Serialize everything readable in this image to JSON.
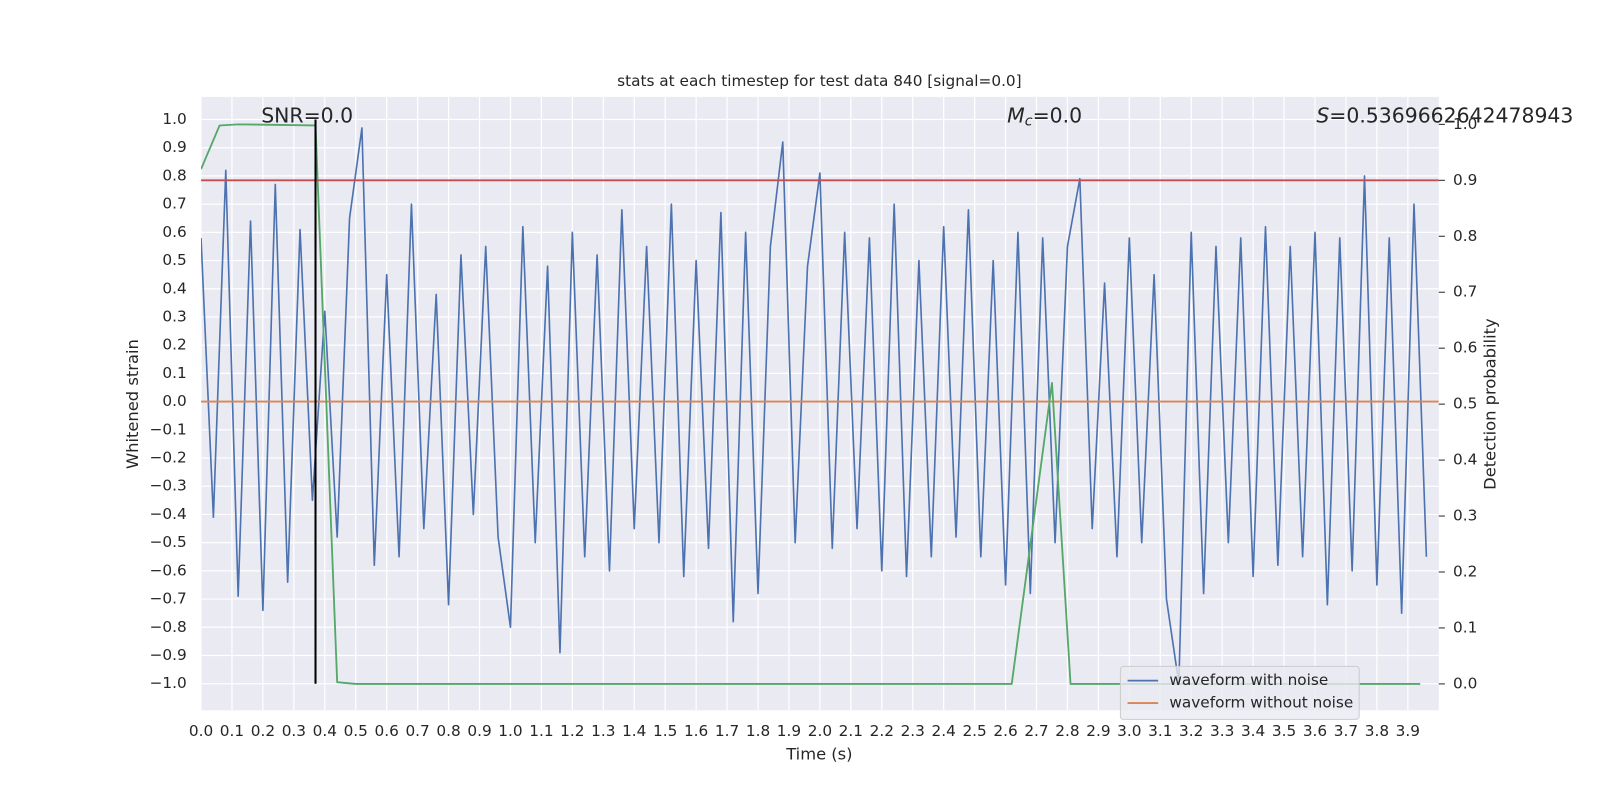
{
  "chart_data": {
    "type": "line",
    "title": "stats at each timestep for test data 840 [signal=0.0]",
    "xlabel": "Time (s)",
    "ylabel": "Whitened strain",
    "y2label": "Detection probability",
    "xlim": [
      0,
      4.0
    ],
    "ylim": [
      -1.094,
      1.08
    ],
    "y2lim": [
      -0.047,
      1.049
    ],
    "grid": true,
    "legend": "lower right",
    "xticks": [
      {
        "value": 0,
        "label": "0.0"
      },
      0.1,
      0.2,
      0.3,
      0.4,
      0.5,
      0.6,
      0.7,
      0.8,
      0.9,
      {
        "value": 1,
        "label": "1.0"
      },
      1.1,
      1.2,
      1.3,
      1.4,
      1.5,
      1.6,
      1.7,
      1.8,
      1.9,
      {
        "value": 2,
        "label": "2.0"
      },
      2.1,
      2.2,
      2.3,
      2.4,
      2.5,
      2.6,
      2.7,
      2.8,
      2.9,
      {
        "value": 3,
        "label": "3.0"
      },
      3.1,
      3.2,
      3.3,
      3.4,
      3.5,
      3.6,
      3.7,
      3.8,
      3.9
    ],
    "yticks": [
      {
        "value": -1.0,
        "label": "−1.0"
      },
      {
        "value": -0.9,
        "label": "−0.9"
      },
      {
        "value": -0.8,
        "label": "−0.8"
      },
      {
        "value": -0.7,
        "label": "−0.7"
      },
      {
        "value": -0.6,
        "label": "−0.6"
      },
      {
        "value": -0.5,
        "label": "−0.5"
      },
      {
        "value": -0.4,
        "label": "−0.4"
      },
      {
        "value": -0.3,
        "label": "−0.3"
      },
      {
        "value": -0.2,
        "label": "−0.2"
      },
      {
        "value": -0.1,
        "label": "−0.1"
      },
      {
        "value": 0,
        "label": "0.0"
      },
      0.1,
      0.2,
      0.3,
      0.4,
      0.5,
      0.6,
      0.7,
      0.8,
      0.9,
      {
        "value": 1,
        "label": "1.0"
      }
    ],
    "y2ticks": [
      {
        "value": 0,
        "label": "0.0"
      },
      0.1,
      0.2,
      0.3,
      0.4,
      0.5,
      0.6,
      0.7,
      0.8,
      0.9,
      {
        "value": 1,
        "label": "1.0"
      }
    ],
    "series": [
      {
        "name": "waveform with noise",
        "color": "#4c72b0",
        "x": [
          0,
          0.04,
          0.08,
          0.12,
          0.16,
          0.2,
          0.24,
          0.28,
          0.32,
          0.36,
          0.4,
          0.44,
          0.48,
          0.52,
          0.56,
          0.6,
          0.64,
          0.68,
          0.72,
          0.76,
          0.8,
          0.84,
          0.88,
          0.92,
          0.96,
          1.0,
          1.04,
          1.08,
          1.12,
          1.16,
          1.2,
          1.24,
          1.28,
          1.32,
          1.36,
          1.4,
          1.44,
          1.48,
          1.52,
          1.56,
          1.6,
          1.64,
          1.68,
          1.72,
          1.76,
          1.8,
          1.84,
          1.88,
          1.92,
          1.96,
          2.0,
          2.04,
          2.08,
          2.12,
          2.16,
          2.2,
          2.24,
          2.28,
          2.32,
          2.36,
          2.4,
          2.44,
          2.48,
          2.52,
          2.56,
          2.6,
          2.64,
          2.68,
          2.72,
          2.76,
          2.8,
          2.84,
          2.88,
          2.92,
          2.96,
          3.0,
          3.04,
          3.08,
          3.12,
          3.16,
          3.2,
          3.24,
          3.28,
          3.32,
          3.36,
          3.4,
          3.44,
          3.48,
          3.52,
          3.56,
          3.6,
          3.64,
          3.68,
          3.72,
          3.76,
          3.8,
          3.84,
          3.88,
          3.92,
          3.96
        ],
        "values": [
          0.58,
          -0.41,
          0.82,
          -0.69,
          0.64,
          -0.74,
          0.77,
          -0.64,
          0.61,
          -0.35,
          0.32,
          -0.48,
          0.65,
          0.97,
          -0.58,
          0.45,
          -0.55,
          0.7,
          -0.45,
          0.38,
          -0.72,
          0.52,
          -0.4,
          0.55,
          -0.48,
          -0.8,
          0.62,
          -0.5,
          0.48,
          -0.89,
          0.6,
          -0.55,
          0.52,
          -0.6,
          0.68,
          -0.45,
          0.55,
          -0.5,
          0.7,
          -0.62,
          0.5,
          -0.52,
          0.67,
          -0.78,
          0.6,
          -0.68,
          0.55,
          0.92,
          -0.5,
          0.48,
          0.81,
          -0.52,
          0.6,
          -0.45,
          0.58,
          -0.6,
          0.7,
          -0.62,
          0.5,
          -0.55,
          0.62,
          -0.48,
          0.68,
          -0.55,
          0.5,
          -0.65,
          0.6,
          -0.68,
          0.58,
          -0.5,
          0.55,
          0.79,
          -0.45,
          0.42,
          -0.55,
          0.58,
          -0.5,
          0.45,
          -0.7,
          -1.0,
          0.6,
          -0.68,
          0.55,
          -0.5,
          0.58,
          -0.62,
          0.62,
          -0.58,
          0.55,
          -0.55,
          0.6,
          -0.72,
          0.58,
          -0.6,
          0.8,
          -0.65,
          0.58,
          -0.75,
          0.7,
          -0.55
        ]
      },
      {
        "name": "waveform without noise",
        "color": "#dd8452",
        "x": [
          0,
          4.0
        ],
        "values": [
          0,
          0
        ]
      },
      {
        "color": "#55a868",
        "axis": "y2",
        "x": [
          0,
          0.06,
          0.12,
          0.37,
          0.44,
          0.5,
          2.62,
          2.75,
          2.81,
          3.94
        ],
        "values": [
          0.92,
          0.998,
          1.0,
          0.998,
          0.003,
          0,
          0,
          0.538,
          0,
          0
        ]
      }
    ],
    "hlines": [
      {
        "value": 0.9,
        "axis": "y2",
        "color": "#c44e52"
      }
    ],
    "vlines": [
      {
        "x": 0.37,
        "ymin": -1.0,
        "ymax": 1.0,
        "color": "#000000"
      }
    ],
    "annotations": [
      {
        "rest": "SNR=0.0"
      },
      {
        "italic": "M",
        "sub": "c",
        "rest": "=0.0"
      },
      {
        "italic": "S",
        "rest": "=0.5369662642478943"
      }
    ]
  }
}
